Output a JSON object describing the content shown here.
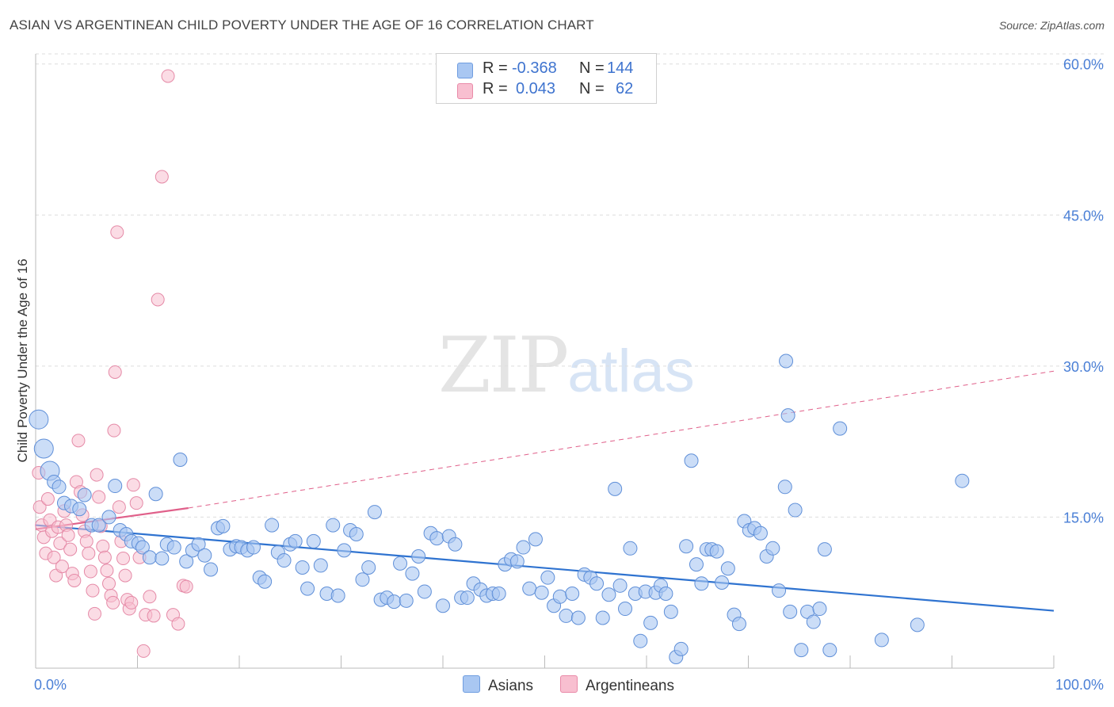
{
  "title": "ASIAN VS ARGENTINEAN CHILD POVERTY UNDER THE AGE OF 16 CORRELATION CHART",
  "source": "Source: ZipAtlas.com",
  "watermark": {
    "zip": "ZIP",
    "atlas": "atlas"
  },
  "legend": {
    "rows": [
      {
        "r_label": "R =",
        "r_value": "-0.368",
        "n_label": "N =",
        "n_value": "144",
        "color": "#a9c7f2",
        "border": "#6f9de0"
      },
      {
        "r_label": "R =",
        "r_value": "0.043",
        "n_label": "N =",
        "n_value": "62",
        "color": "#f8bfd0",
        "border": "#e98aa8"
      }
    ]
  },
  "bottom_legend": {
    "asians": "Asians",
    "argentineans": "Argentineans"
  },
  "colors": {
    "asian_fill": "#a9c7f2",
    "asian_stroke": "#5f8fd8",
    "asian_line": "#2f73d0",
    "arg_fill": "#f8bfd0",
    "arg_stroke": "#e58aa7",
    "arg_line": "#e0608a",
    "grid": "#dddddd",
    "tick_text": "#4a7fd6"
  },
  "chart_data": {
    "type": "scatter",
    "title": "ASIAN VS ARGENTINEAN CHILD POVERTY UNDER THE AGE OF 16 CORRELATION CHART",
    "xlabel": "",
    "ylabel": "Child Poverty Under the Age of 16",
    "xlim": [
      0,
      100
    ],
    "ylim": [
      0,
      61
    ],
    "x_tick_labels": [
      "0.0%",
      "100.0%"
    ],
    "y_ticks": [
      15,
      30,
      45,
      60
    ],
    "y_tick_labels": [
      "15.0%",
      "30.0%",
      "45.0%",
      "60.0%"
    ],
    "grid": true,
    "series": [
      {
        "name": "Asians",
        "points": [
          [
            0.3,
            24.7
          ],
          [
            0.8,
            21.8
          ],
          [
            1.4,
            19.6
          ],
          [
            1.8,
            18.5
          ],
          [
            2.3,
            18.0
          ],
          [
            2.8,
            16.4
          ],
          [
            3.5,
            16.1
          ],
          [
            4.3,
            15.8
          ],
          [
            4.8,
            17.2
          ],
          [
            5.5,
            14.2
          ],
          [
            6.2,
            14.2
          ],
          [
            7.2,
            15.0
          ],
          [
            7.8,
            18.1
          ],
          [
            8.3,
            13.7
          ],
          [
            8.9,
            13.3
          ],
          [
            9.4,
            12.6
          ],
          [
            10.1,
            12.4
          ],
          [
            10.5,
            12.0
          ],
          [
            11.2,
            11.0
          ],
          [
            11.8,
            17.3
          ],
          [
            12.4,
            10.9
          ],
          [
            12.9,
            12.3
          ],
          [
            13.6,
            12.0
          ],
          [
            14.2,
            20.7
          ],
          [
            14.8,
            10.6
          ],
          [
            15.4,
            11.7
          ],
          [
            16.0,
            12.3
          ],
          [
            16.6,
            11.2
          ],
          [
            17.2,
            9.8
          ],
          [
            17.9,
            13.9
          ],
          [
            18.4,
            14.1
          ],
          [
            19.1,
            11.8
          ],
          [
            19.7,
            12.1
          ],
          [
            20.2,
            12.0
          ],
          [
            20.8,
            11.7
          ],
          [
            21.4,
            12.0
          ],
          [
            22.0,
            9.0
          ],
          [
            22.5,
            8.6
          ],
          [
            23.2,
            14.2
          ],
          [
            23.8,
            11.5
          ],
          [
            24.4,
            10.7
          ],
          [
            25.0,
            12.3
          ],
          [
            25.5,
            12.6
          ],
          [
            26.2,
            10.0
          ],
          [
            26.7,
            7.9
          ],
          [
            27.3,
            12.6
          ],
          [
            28.0,
            10.2
          ],
          [
            28.6,
            7.4
          ],
          [
            29.2,
            14.2
          ],
          [
            29.7,
            7.2
          ],
          [
            30.3,
            11.7
          ],
          [
            30.9,
            13.7
          ],
          [
            31.5,
            13.3
          ],
          [
            32.1,
            8.8
          ],
          [
            32.7,
            10.0
          ],
          [
            33.3,
            15.5
          ],
          [
            33.9,
            6.8
          ],
          [
            34.5,
            7.0
          ],
          [
            35.2,
            6.6
          ],
          [
            35.8,
            10.4
          ],
          [
            36.4,
            6.7
          ],
          [
            37.0,
            9.4
          ],
          [
            37.6,
            11.1
          ],
          [
            38.2,
            7.6
          ],
          [
            38.8,
            13.4
          ],
          [
            39.4,
            12.9
          ],
          [
            40.0,
            6.2
          ],
          [
            40.6,
            13.1
          ],
          [
            41.2,
            12.3
          ],
          [
            41.8,
            7.0
          ],
          [
            42.4,
            7.0
          ],
          [
            43.0,
            8.4
          ],
          [
            43.7,
            7.8
          ],
          [
            44.3,
            7.2
          ],
          [
            44.9,
            7.4
          ],
          [
            45.5,
            7.4
          ],
          [
            46.1,
            10.3
          ],
          [
            46.7,
            10.8
          ],
          [
            47.3,
            10.6
          ],
          [
            47.9,
            12.0
          ],
          [
            48.5,
            7.9
          ],
          [
            49.1,
            12.8
          ],
          [
            49.7,
            7.5
          ],
          [
            50.3,
            9.0
          ],
          [
            50.9,
            6.2
          ],
          [
            51.5,
            7.1
          ],
          [
            52.1,
            5.2
          ],
          [
            52.7,
            7.4
          ],
          [
            53.3,
            5.0
          ],
          [
            53.9,
            9.3
          ],
          [
            54.5,
            9.0
          ],
          [
            55.1,
            8.4
          ],
          [
            55.7,
            5.0
          ],
          [
            56.3,
            7.3
          ],
          [
            56.9,
            17.8
          ],
          [
            57.4,
            8.2
          ],
          [
            57.9,
            5.9
          ],
          [
            58.4,
            11.9
          ],
          [
            58.9,
            7.4
          ],
          [
            59.4,
            2.7
          ],
          [
            59.9,
            7.6
          ],
          [
            60.4,
            4.5
          ],
          [
            60.9,
            7.5
          ],
          [
            61.4,
            8.2
          ],
          [
            61.9,
            7.4
          ],
          [
            62.4,
            5.6
          ],
          [
            62.9,
            1.1
          ],
          [
            63.4,
            1.9
          ],
          [
            63.9,
            12.1
          ],
          [
            64.4,
            20.6
          ],
          [
            64.9,
            10.3
          ],
          [
            65.4,
            8.4
          ],
          [
            65.9,
            11.8
          ],
          [
            66.4,
            11.8
          ],
          [
            66.9,
            11.6
          ],
          [
            67.4,
            8.5
          ],
          [
            68.0,
            9.9
          ],
          [
            68.6,
            5.3
          ],
          [
            69.1,
            4.4
          ],
          [
            69.6,
            14.6
          ],
          [
            70.1,
            13.7
          ],
          [
            70.6,
            13.9
          ],
          [
            71.2,
            13.4
          ],
          [
            71.8,
            11.1
          ],
          [
            72.4,
            11.9
          ],
          [
            73.0,
            7.7
          ],
          [
            73.6,
            18.0
          ],
          [
            73.7,
            30.5
          ],
          [
            73.9,
            25.1
          ],
          [
            74.1,
            5.6
          ],
          [
            74.6,
            15.7
          ],
          [
            75.2,
            1.8
          ],
          [
            75.8,
            5.6
          ],
          [
            76.4,
            4.6
          ],
          [
            77.0,
            5.9
          ],
          [
            77.5,
            11.8
          ],
          [
            78.0,
            1.8
          ],
          [
            79.0,
            23.8
          ],
          [
            83.1,
            2.8
          ],
          [
            86.6,
            4.3
          ],
          [
            91.0,
            18.6
          ]
        ]
      },
      {
        "name": "Argentineans",
        "points": [
          [
            0.3,
            19.4
          ],
          [
            0.4,
            16.0
          ],
          [
            0.6,
            14.2
          ],
          [
            0.8,
            13.0
          ],
          [
            1.0,
            11.4
          ],
          [
            1.2,
            16.8
          ],
          [
            1.4,
            14.7
          ],
          [
            1.6,
            13.6
          ],
          [
            1.8,
            11.0
          ],
          [
            2.0,
            9.2
          ],
          [
            2.2,
            14.0
          ],
          [
            2.4,
            12.4
          ],
          [
            2.6,
            10.1
          ],
          [
            2.8,
            15.6
          ],
          [
            3.0,
            14.2
          ],
          [
            3.2,
            13.2
          ],
          [
            3.4,
            11.8
          ],
          [
            3.6,
            9.4
          ],
          [
            3.8,
            8.7
          ],
          [
            4.0,
            18.5
          ],
          [
            4.2,
            22.6
          ],
          [
            4.4,
            17.5
          ],
          [
            4.6,
            15.2
          ],
          [
            4.8,
            13.6
          ],
          [
            5.0,
            12.6
          ],
          [
            5.2,
            11.4
          ],
          [
            5.4,
            9.6
          ],
          [
            5.6,
            7.7
          ],
          [
            5.8,
            5.4
          ],
          [
            6.0,
            19.2
          ],
          [
            6.2,
            17.0
          ],
          [
            6.4,
            14.1
          ],
          [
            6.6,
            12.1
          ],
          [
            6.8,
            11.0
          ],
          [
            7.0,
            9.7
          ],
          [
            7.2,
            8.4
          ],
          [
            7.4,
            7.2
          ],
          [
            7.6,
            6.5
          ],
          [
            7.7,
            23.6
          ],
          [
            7.8,
            29.4
          ],
          [
            8.0,
            43.3
          ],
          [
            8.2,
            16.0
          ],
          [
            8.4,
            12.6
          ],
          [
            8.6,
            10.9
          ],
          [
            8.8,
            9.2
          ],
          [
            9.0,
            6.8
          ],
          [
            9.2,
            5.9
          ],
          [
            9.4,
            6.5
          ],
          [
            9.6,
            18.2
          ],
          [
            9.9,
            16.4
          ],
          [
            10.2,
            11.0
          ],
          [
            10.6,
            1.7
          ],
          [
            10.8,
            5.3
          ],
          [
            11.2,
            7.1
          ],
          [
            11.6,
            5.2
          ],
          [
            12.0,
            36.6
          ],
          [
            12.4,
            48.8
          ],
          [
            13.0,
            58.8
          ],
          [
            13.5,
            5.3
          ],
          [
            14.0,
            4.4
          ],
          [
            14.5,
            8.2
          ],
          [
            14.8,
            8.1
          ]
        ]
      }
    ],
    "trend_lines": [
      {
        "series": "Asians",
        "x": [
          0,
          100
        ],
        "y": [
          14.2,
          5.7
        ]
      },
      {
        "series": "Argentineans",
        "x": [
          0,
          15
        ],
        "y": [
          13.8,
          15.9
        ],
        "extended_dashed_to": [
          100,
          29.5
        ]
      }
    ]
  }
}
